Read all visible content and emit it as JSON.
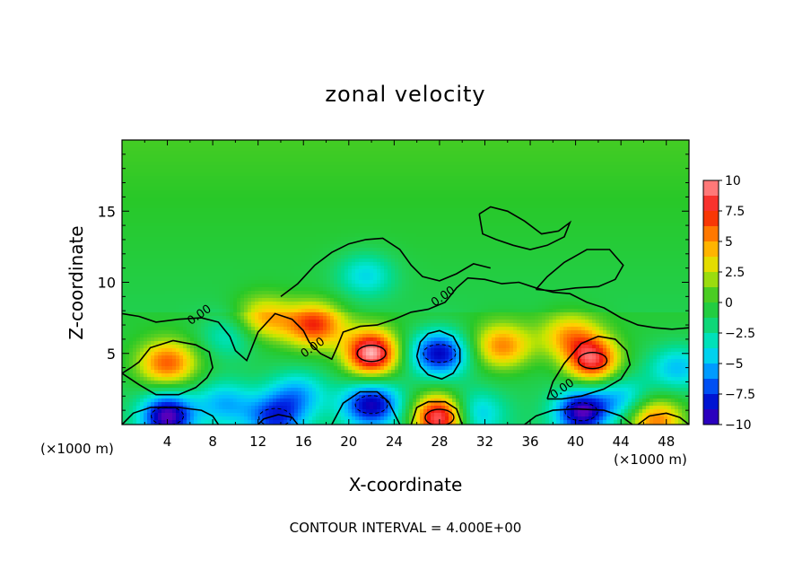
{
  "chart_data": {
    "type": "heatmap",
    "title": "zonal velocity",
    "xlabel": "X-coordinate",
    "ylabel": "Z-coordinate",
    "x_unit_left": "(×1000 m)",
    "x_unit_right": "(×1000 m)",
    "xlim": [
      0,
      50
    ],
    "ylim": [
      0,
      20
    ],
    "x_ticks": [
      4,
      8,
      12,
      16,
      20,
      24,
      28,
      32,
      36,
      40,
      44,
      48
    ],
    "y_ticks": [
      5,
      10,
      15
    ],
    "colorbar": {
      "ticks": [
        10,
        7.5,
        5,
        2.5,
        0,
        -2.5,
        -5,
        -7.5,
        -10
      ],
      "tick_labels": [
        "10",
        "7.5",
        "5",
        "2.5",
        "0",
        "−2.5",
        "−5",
        "−7.5",
        "−10"
      ],
      "range": [
        -10,
        10
      ]
    },
    "contour_labels": [
      {
        "text": "0.00",
        "x": 7,
        "y": 7.5
      },
      {
        "text": "0.00",
        "x": 17,
        "y": 5.2
      },
      {
        "text": "0.00",
        "x": 28.5,
        "y": 8.8
      },
      {
        "text": "0.00",
        "x": 39,
        "y": 2.3
      }
    ],
    "features": [
      {
        "kind": "max",
        "x": 4,
        "y": 4.3,
        "value": 7
      },
      {
        "kind": "max",
        "x": 12.5,
        "y": 7.5,
        "value": 5
      },
      {
        "kind": "max",
        "x": 17,
        "y": 7,
        "value": 7.5
      },
      {
        "kind": "max",
        "x": 22,
        "y": 5,
        "value": 11
      },
      {
        "kind": "max",
        "x": 28,
        "y": 0.5,
        "value": 11
      },
      {
        "kind": "max",
        "x": 33.5,
        "y": 5.5,
        "value": 6
      },
      {
        "kind": "max",
        "x": 41.5,
        "y": 4.5,
        "value": 9
      },
      {
        "kind": "max",
        "x": 39.5,
        "y": 6.2,
        "value": 5
      },
      {
        "kind": "max",
        "x": 47,
        "y": 0.3,
        "value": 7
      },
      {
        "kind": "min",
        "x": 28,
        "y": 5,
        "value": -8
      },
      {
        "kind": "min",
        "x": 4,
        "y": 0.6,
        "value": -9
      },
      {
        "kind": "min",
        "x": 22,
        "y": 1.4,
        "value": -8
      },
      {
        "kind": "min",
        "x": 40.5,
        "y": 0.9,
        "value": -8.5
      },
      {
        "kind": "min",
        "x": 13.5,
        "y": 0.5,
        "value": -6
      },
      {
        "kind": "min",
        "x": 9,
        "y": 1.5,
        "value": -4
      },
      {
        "kind": "min",
        "x": 15.5,
        "y": 2.2,
        "value": -4
      },
      {
        "kind": "min",
        "x": 21.5,
        "y": 10.5,
        "value": -3.5
      },
      {
        "kind": "min",
        "x": 9.5,
        "y": 6.3,
        "value": -3
      },
      {
        "kind": "min",
        "x": 31,
        "y": 0.8,
        "value": -4
      },
      {
        "kind": "min",
        "x": 49,
        "y": 4,
        "value": -4
      },
      {
        "kind": "min",
        "x": 44,
        "y": 1.8,
        "value": -4
      }
    ],
    "zero_contours": [
      [
        [
          0,
          7.8
        ],
        [
          1.5,
          7.6
        ],
        [
          3,
          7.2
        ],
        [
          5,
          7.4
        ],
        [
          7,
          7.5
        ],
        [
          8.5,
          7.2
        ],
        [
          9.5,
          6.2
        ],
        [
          10,
          5.2
        ],
        [
          11,
          4.5
        ],
        [
          11.5,
          5.5
        ],
        [
          12,
          6.5
        ],
        [
          13.5,
          7.8
        ],
        [
          15,
          7.4
        ],
        [
          16,
          6.6
        ],
        [
          16.5,
          5.8
        ],
        [
          17.5,
          5.0
        ],
        [
          18.5,
          4.6
        ],
        [
          19,
          5.5
        ],
        [
          19.5,
          6.5
        ],
        [
          21,
          6.9
        ],
        [
          22.5,
          7.0
        ],
        [
          24,
          7.4
        ],
        [
          25.5,
          7.9
        ],
        [
          27,
          8.1
        ],
        [
          28.5,
          8.6
        ],
        [
          29.5,
          9.6
        ],
        [
          30.5,
          10.3
        ],
        [
          32,
          10.2
        ],
        [
          33.5,
          9.9
        ],
        [
          35,
          10.0
        ],
        [
          36.5,
          9.6
        ],
        [
          38,
          9.3
        ],
        [
          39.5,
          9.2
        ],
        [
          41,
          8.6
        ],
        [
          42.5,
          8.2
        ],
        [
          44,
          7.5
        ],
        [
          45.5,
          7.0
        ],
        [
          47,
          6.8
        ],
        [
          48.5,
          6.7
        ],
        [
          50,
          6.8
        ]
      ],
      [
        [
          0,
          3.6
        ],
        [
          1.5,
          2.8
        ],
        [
          3,
          2.1
        ],
        [
          5,
          2.1
        ],
        [
          6.5,
          2.6
        ],
        [
          7.5,
          3.3
        ],
        [
          8,
          4.0
        ],
        [
          7.7,
          5.1
        ],
        [
          6.5,
          5.6
        ],
        [
          4.5,
          5.9
        ],
        [
          2.5,
          5.4
        ],
        [
          1.5,
          4.4
        ],
        [
          0.8,
          4.0
        ],
        [
          0,
          3.6
        ]
      ],
      [
        [
          14,
          9.0
        ],
        [
          15.5,
          9.9
        ],
        [
          17,
          11.2
        ],
        [
          18.5,
          12.1
        ],
        [
          20,
          12.7
        ],
        [
          21.5,
          13.0
        ],
        [
          23,
          13.1
        ],
        [
          24.5,
          12.3
        ],
        [
          25.5,
          11.2
        ],
        [
          26.5,
          10.4
        ],
        [
          28,
          10.1
        ],
        [
          29.5,
          10.6
        ],
        [
          31,
          11.3
        ],
        [
          32.5,
          11.0
        ]
      ],
      [
        [
          31.5,
          14.8
        ],
        [
          32.5,
          15.3
        ],
        [
          34,
          15.0
        ],
        [
          35.5,
          14.3
        ],
        [
          37,
          13.4
        ],
        [
          38.5,
          13.6
        ],
        [
          39.5,
          14.2
        ],
        [
          39,
          13.2
        ],
        [
          37.5,
          12.6
        ],
        [
          36,
          12.3
        ],
        [
          34.5,
          12.6
        ],
        [
          33,
          13.0
        ],
        [
          31.8,
          13.4
        ],
        [
          31.5,
          14.8
        ]
      ],
      [
        [
          36.5,
          9.5
        ],
        [
          37.5,
          10.4
        ],
        [
          39,
          11.4
        ],
        [
          41,
          12.3
        ],
        [
          43,
          12.3
        ],
        [
          44.2,
          11.2
        ],
        [
          43.5,
          10.2
        ],
        [
          42,
          9.7
        ],
        [
          40,
          9.6
        ],
        [
          38,
          9.4
        ],
        [
          36.5,
          9.5
        ]
      ],
      [
        [
          0,
          0
        ],
        [
          1,
          0.8
        ],
        [
          2.5,
          1.2
        ],
        [
          5,
          1.2
        ],
        [
          7,
          1.0
        ],
        [
          8,
          0.6
        ],
        [
          8.5,
          0
        ]
      ],
      [
        [
          18.5,
          0
        ],
        [
          19.5,
          1.5
        ],
        [
          21,
          2.3
        ],
        [
          22.5,
          2.3
        ],
        [
          23.5,
          1.6
        ],
        [
          24,
          0.8
        ],
        [
          24.5,
          0
        ]
      ],
      [
        [
          25.5,
          0
        ],
        [
          26,
          1.2
        ],
        [
          27,
          1.6
        ],
        [
          28.5,
          1.6
        ],
        [
          29.5,
          1.1
        ],
        [
          30,
          0
        ]
      ],
      [
        [
          26,
          4.8
        ],
        [
          26.3,
          5.8
        ],
        [
          27,
          6.4
        ],
        [
          28,
          6.6
        ],
        [
          29.2,
          6.2
        ],
        [
          29.8,
          5.3
        ],
        [
          29.8,
          4.4
        ],
        [
          29.2,
          3.6
        ],
        [
          28.2,
          3.2
        ],
        [
          27,
          3.5
        ],
        [
          26.3,
          4.1
        ],
        [
          26,
          4.8
        ]
      ],
      [
        [
          37.5,
          1.8
        ],
        [
          38,
          3.0
        ],
        [
          39,
          4.3
        ],
        [
          40.5,
          5.7
        ],
        [
          42,
          6.2
        ],
        [
          43.5,
          6.0
        ],
        [
          44.5,
          5.2
        ],
        [
          44.8,
          4.2
        ],
        [
          44,
          3.2
        ],
        [
          42.5,
          2.5
        ],
        [
          40.5,
          2.0
        ],
        [
          38.8,
          1.8
        ],
        [
          37.5,
          1.8
        ]
      ],
      [
        [
          35.5,
          0
        ],
        [
          36.5,
          0.6
        ],
        [
          38,
          1.0
        ],
        [
          40,
          1.1
        ],
        [
          42.5,
          1.0
        ],
        [
          44,
          0.6
        ],
        [
          45,
          0
        ]
      ],
      [
        [
          45.5,
          0
        ],
        [
          46.5,
          0.6
        ],
        [
          48,
          0.8
        ],
        [
          49.2,
          0.5
        ],
        [
          50,
          0
        ]
      ],
      [
        [
          12,
          0
        ],
        [
          12.5,
          0.4
        ],
        [
          13.8,
          0.7
        ],
        [
          15,
          0.5
        ],
        [
          15.5,
          0
        ]
      ]
    ]
  },
  "footer": {
    "contour_interval": "CONTOUR INTERVAL = 4.000E+00"
  }
}
